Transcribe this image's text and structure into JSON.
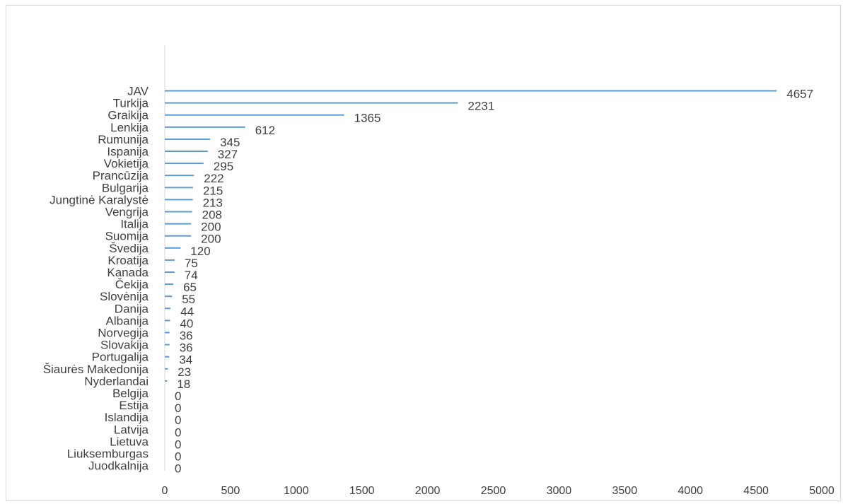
{
  "chart_data": {
    "type": "bar",
    "orientation": "horizontal",
    "title": "",
    "xlabel": "",
    "ylabel": "",
    "xlim": [
      0,
      5000
    ],
    "xticks": [
      0,
      500,
      1000,
      1500,
      2000,
      2500,
      3000,
      3500,
      4000,
      4500,
      5000
    ],
    "grid": false,
    "legend": "none",
    "bar_color": "#5b9bd5",
    "categories": [
      "JAV",
      "Turkija",
      "Graikija",
      "Lenkija",
      "Rumunija",
      "Ispanija",
      "Vokietija",
      "Prancūzija",
      "Bulgarija",
      "Jungtinė Karalystė",
      "Vengrija",
      "Italija",
      "Suomija",
      "Švedija",
      "Kroatija",
      "Kanada",
      "Čekija",
      "Slovėnija",
      "Danija",
      "Albanija",
      "Norvegija",
      "Slovakija",
      "Portugalija",
      "Šiaurės Makedonija",
      "Nyderlandai",
      "Belgija",
      "Estija",
      "Islandija",
      "Latvija",
      "Lietuva",
      "Liuksemburgas",
      "Juodkalnija"
    ],
    "values": [
      4657,
      2231,
      1365,
      612,
      345,
      327,
      295,
      222,
      215,
      213,
      208,
      200,
      200,
      120,
      75,
      74,
      65,
      55,
      44,
      40,
      36,
      36,
      34,
      23,
      18,
      0,
      0,
      0,
      0,
      0,
      0,
      0
    ],
    "value_labels": [
      "4657",
      "2231",
      "1365",
      "612",
      "345",
      "327",
      "295",
      "222",
      "215",
      "213",
      "208",
      "200",
      "200",
      "120",
      "75",
      "74",
      "65",
      "55",
      "44",
      "40",
      "36",
      "36",
      "34",
      "23",
      "18",
      "0",
      "0",
      "0",
      "0",
      "0",
      "0",
      "0"
    ],
    "tick_labels": [
      "0",
      "500",
      "1000",
      "1500",
      "2000",
      "2500",
      "3000",
      "3500",
      "4000",
      "4500",
      "5000"
    ]
  }
}
